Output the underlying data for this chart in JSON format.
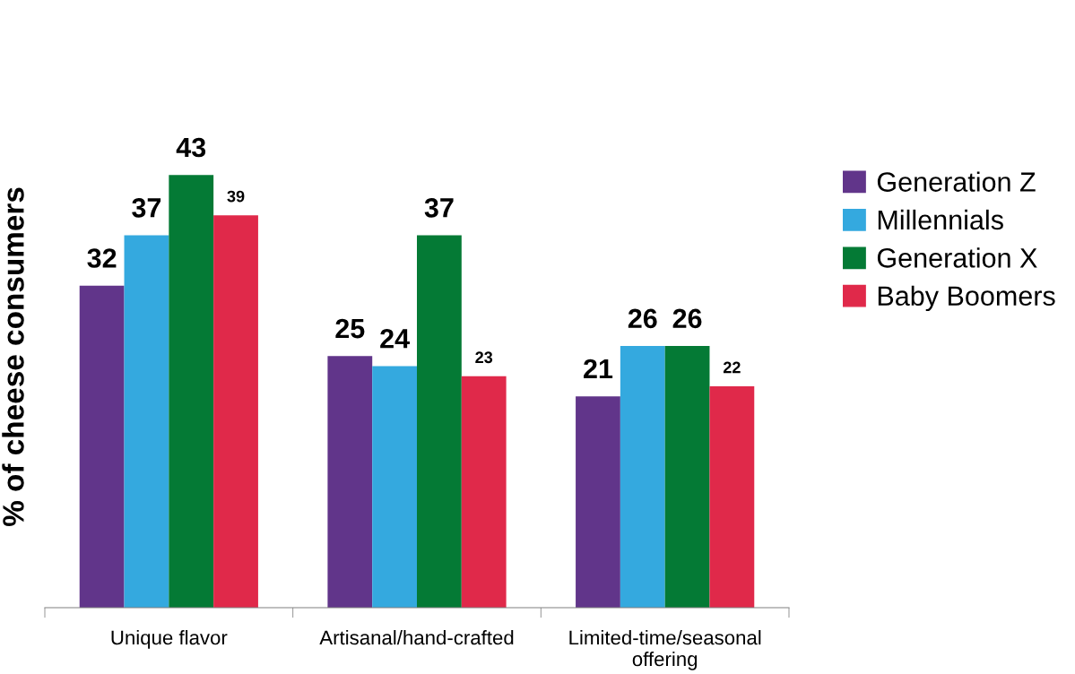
{
  "chart_data": {
    "type": "bar",
    "ylabel": "% of cheese consumers",
    "categories": [
      "Unique flavor",
      "Artisanal/hand-crafted",
      "Limited-time/seasonal\noffering"
    ],
    "series": [
      {
        "name": "Generation Z",
        "color": "#61358a",
        "values": [
          32,
          25,
          21
        ]
      },
      {
        "name": "Millennials",
        "color": "#34a9df",
        "values": [
          37,
          24,
          26
        ]
      },
      {
        "name": "Generation X",
        "color": "#047a35",
        "values": [
          43,
          37,
          26
        ]
      },
      {
        "name": "Baby Boomers",
        "color": "#e0294a",
        "values": [
          39,
          23,
          22
        ]
      }
    ],
    "data_labels": true,
    "legend": "right",
    "grid": false
  }
}
